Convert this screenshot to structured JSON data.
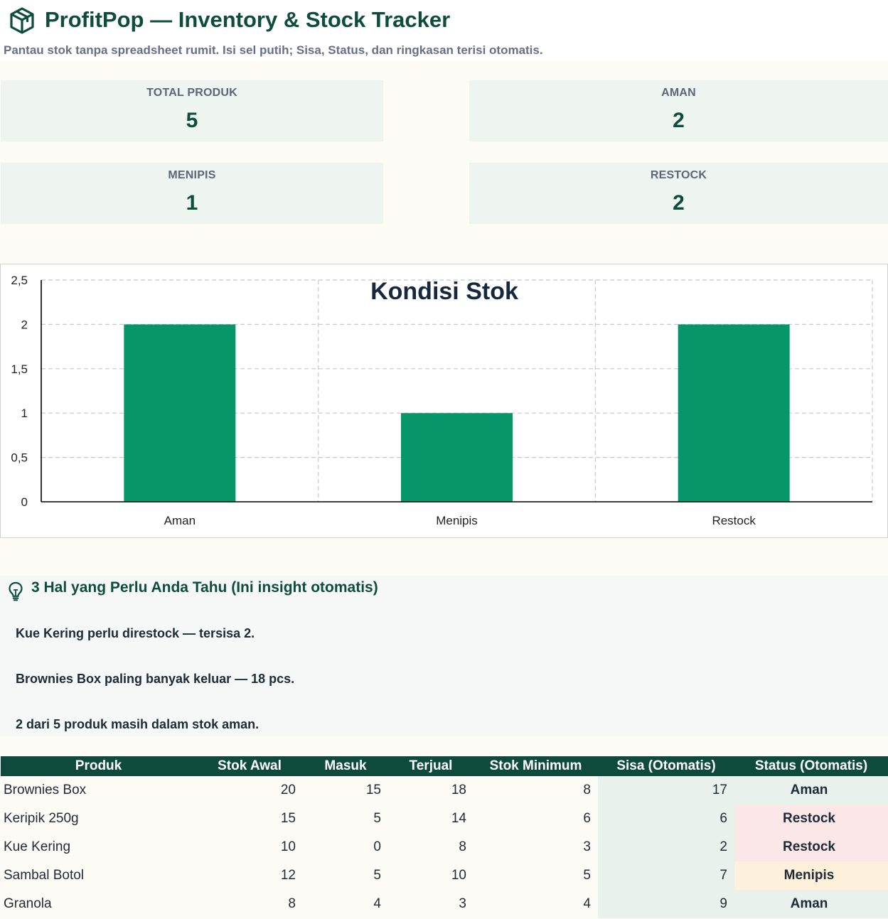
{
  "header": {
    "title": "ProfitPop — Inventory & Stock Tracker",
    "subtitle": "Pantau stok tanpa spreadsheet rumit. Isi sel putih; Sisa, Status, dan ringkasan terisi otomatis."
  },
  "kpis": {
    "total": {
      "label": "TOTAL PRODUK",
      "value": "5"
    },
    "aman": {
      "label": "AMAN",
      "value": "2"
    },
    "menipis": {
      "label": "MENIPIS",
      "value": "1"
    },
    "restock": {
      "label": "RESTOCK",
      "value": "2"
    }
  },
  "chart_data": {
    "type": "bar",
    "title": "Kondisi Stok",
    "categories": [
      "Aman",
      "Menipis",
      "Restock"
    ],
    "values": [
      2,
      1,
      2
    ],
    "ylim": [
      0,
      2.5
    ],
    "yticks": [
      "0",
      "0,5",
      "1",
      "1,5",
      "2",
      "2,5"
    ],
    "grid": true,
    "bar_color": "#07966a"
  },
  "insights": {
    "title": "3 Hal yang Perlu Anda Tahu (Ini insight otomatis)",
    "items": [
      "Kue Kering perlu direstock — tersisa 2.",
      "Brownies Box paling banyak keluar — 18 pcs.",
      "2 dari 5 produk masih dalam stok aman."
    ]
  },
  "table": {
    "headers": [
      "Produk",
      "Stok Awal",
      "Masuk",
      "Terjual",
      "Stok Minimum",
      "Sisa (Otomatis)",
      "Status (Otomatis)"
    ],
    "rows": [
      {
        "produk": "Brownies Box",
        "awal": "20",
        "masuk": "15",
        "terjual": "18",
        "min": "8",
        "sisa": "17",
        "status": "Aman",
        "kind": "aman"
      },
      {
        "produk": "Keripik 250g",
        "awal": "15",
        "masuk": "5",
        "terjual": "14",
        "min": "6",
        "sisa": "6",
        "status": "Restock",
        "kind": "restock"
      },
      {
        "produk": "Kue Kering",
        "awal": "10",
        "masuk": "0",
        "terjual": "8",
        "min": "3",
        "sisa": "2",
        "status": "Restock",
        "kind": "restock"
      },
      {
        "produk": "Sambal Botol",
        "awal": "12",
        "masuk": "5",
        "terjual": "10",
        "min": "5",
        "sisa": "7",
        "status": "Menipis",
        "kind": "menipis"
      },
      {
        "produk": "Granola",
        "awal": "8",
        "masuk": "4",
        "terjual": "3",
        "min": "4",
        "sisa": "9",
        "status": "Aman",
        "kind": "aman"
      }
    ]
  },
  "colors": {
    "brand": "#0e4d3c",
    "aman": "#17704f",
    "restock": "#b23a3a",
    "menipis": "#a26b0c"
  },
  "icons": {
    "logo": "box-icon",
    "insight": "lightbulb-icon"
  }
}
